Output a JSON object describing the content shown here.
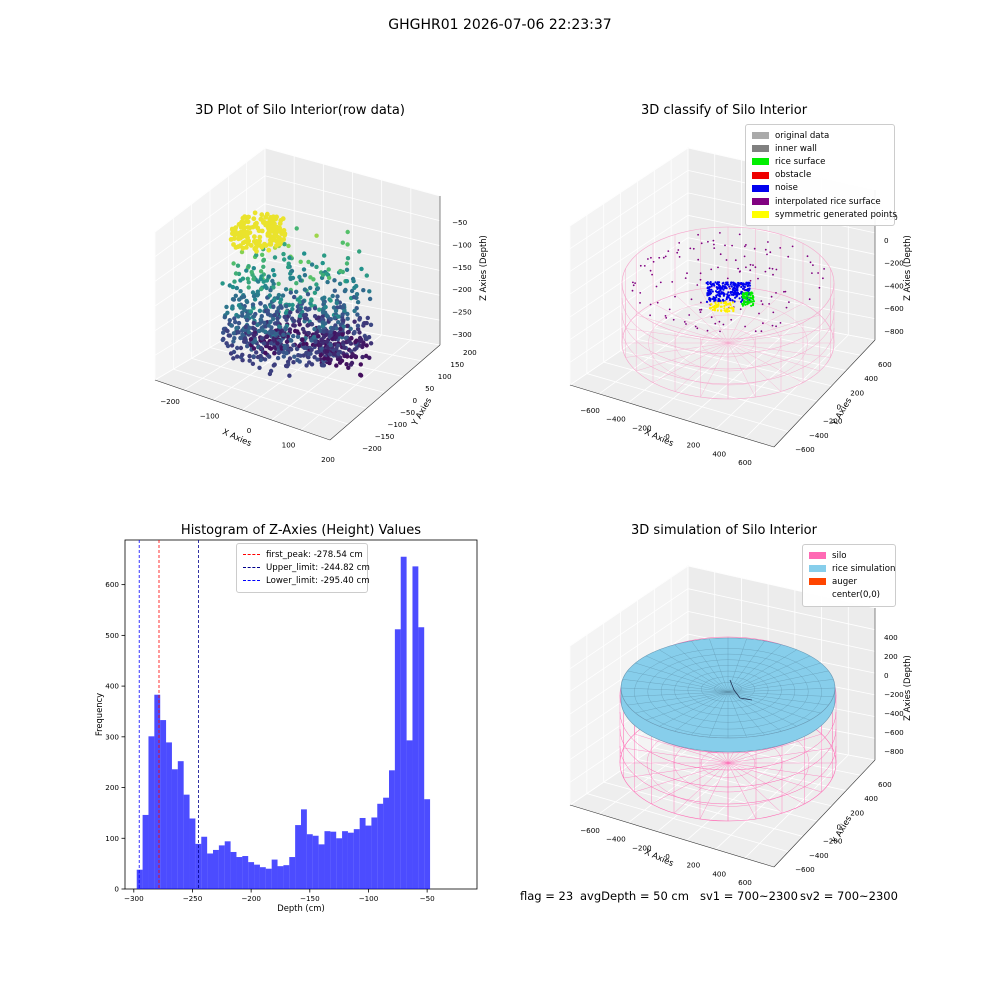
{
  "figure": {
    "suptitle": "GHGHR01 2026-07-06 22:23:37",
    "footer": {
      "flag": "flag = 23",
      "avg_depth": "avgDepth = 50 cm",
      "sv1": "sv1 = 700~2300",
      "sv2": "sv2 = 700~2300"
    }
  },
  "chart_data": [
    {
      "type": "scatter",
      "projection": "3d",
      "title": "3D Plot of Silo Interior(row data)",
      "xlabel": "X Axies",
      "ylabel": "Y Axies",
      "zlabel": "Z Axies (Depth)",
      "x_ticks": [
        "−200",
        "−100",
        "0",
        "100",
        "200"
      ],
      "y_ticks": [
        "−200",
        "−150",
        "−100",
        "−50",
        "0",
        "50",
        "100",
        "150",
        "200"
      ],
      "z_ticks": [
        "−300",
        "−250",
        "−200",
        "−150",
        "−100",
        "−50"
      ],
      "colormap": "viridis",
      "xlim": [
        -230,
        230
      ],
      "ylim": [
        -200,
        200
      ],
      "zlim": [
        -310,
        -30
      ]
    },
    {
      "type": "scatter",
      "projection": "3d",
      "title": "3D classify of Silo Interior",
      "xlabel": "X Axies",
      "ylabel": "Y Axies",
      "zlabel": "Z Axies (Depth)",
      "x_ticks": [
        "−600",
        "−400",
        "−200",
        "0",
        "200",
        "400",
        "600"
      ],
      "y_ticks": [
        "−600",
        "−400",
        "−200",
        "0",
        "200",
        "400",
        "600"
      ],
      "z_ticks": [
        "−800",
        "−600",
        "−400",
        "−200",
        "0",
        "200"
      ],
      "legend": [
        {
          "label": "original data",
          "color": "#aaaaaa"
        },
        {
          "label": "inner wall",
          "color": "#808080"
        },
        {
          "label": "rice surface",
          "color": "#00ee00"
        },
        {
          "label": "obstacle",
          "color": "#ee0000"
        },
        {
          "label": "noise",
          "color": "#0000ee"
        },
        {
          "label": "interpolated rice surface",
          "color": "#800080"
        },
        {
          "label": "symmetric generated points",
          "color": "#ffff00"
        }
      ],
      "legend_position": "top-right"
    },
    {
      "type": "bar",
      "title": "Histogram of Z-Axies (Height) Values",
      "xlabel": "Depth (cm)",
      "ylabel": "Frequency",
      "x_ticks": [
        -300,
        -250,
        -200,
        -150,
        -100,
        -50
      ],
      "y_ticks": [
        0,
        100,
        200,
        300,
        400,
        500,
        600
      ],
      "xlim": [
        -307.5,
        -7.5
      ],
      "ylim": [
        0,
        688
      ],
      "bin_width": 5,
      "bin_start": -297.5,
      "values": [
        38,
        146,
        301,
        383,
        333,
        289,
        236,
        252,
        186,
        139,
        89,
        103,
        70,
        77,
        86,
        94,
        73,
        63,
        65,
        53,
        48,
        43,
        40,
        58,
        45,
        47,
        63,
        126,
        157,
        108,
        105,
        88,
        114,
        113,
        100,
        114,
        111,
        118,
        140,
        125,
        141,
        168,
        180,
        234,
        512,
        655,
        293,
        636,
        516,
        177
      ],
      "color": "#0000ff",
      "vlines": [
        {
          "label": "first_peak: -278.54 cm",
          "x": -278.54,
          "color": "#ff0000"
        },
        {
          "label": "Upper_limit: -244.82 cm",
          "x": -244.82,
          "color": "#00008b"
        },
        {
          "label": "Lower_limit: -295.40 cm",
          "x": -295.4,
          "color": "#0000ff"
        }
      ],
      "legend_position": "top-center"
    },
    {
      "type": "surface",
      "projection": "3d",
      "title": "3D simulation of Silo Interior",
      "xlabel": "X Axies",
      "ylabel": "Y Axies",
      "zlabel": "Z Axies (Depth)",
      "x_ticks": [
        "−600",
        "−400",
        "−200",
        "0",
        "200",
        "400",
        "600"
      ],
      "y_ticks": [
        "−600",
        "−400",
        "−200",
        "0",
        "200",
        "400",
        "600"
      ],
      "z_ticks": [
        "−800",
        "−600",
        "−400",
        "−200",
        "0",
        "200",
        "400"
      ],
      "legend": [
        {
          "label": "silo",
          "color": "#ff69b4"
        },
        {
          "label": "rice simulation",
          "color": "#87ceeb"
        },
        {
          "label": "auger",
          "color": "#ff4500"
        },
        {
          "label": "center(0,0)",
          "color": ""
        }
      ],
      "legend_position": "top-right"
    }
  ]
}
